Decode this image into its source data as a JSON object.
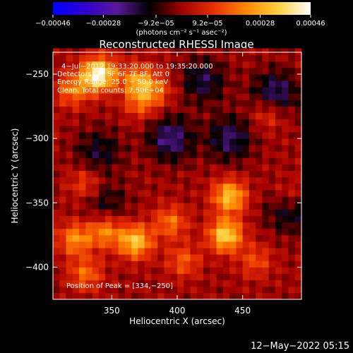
{
  "chart_data": {
    "type": "heatmap",
    "title": "Reconstructed RHESSI Image",
    "xlabel": "Heliocentric X (arcsec)",
    "ylabel": "Heliocentric Y (arcsec)",
    "xlim": [
      305,
      495
    ],
    "ylim": [
      -425,
      -233
    ],
    "x_ticks": [
      350,
      400,
      450
    ],
    "y_ticks": [
      -250,
      -300,
      -350,
      -400
    ],
    "x_tick_labels": [
      "350",
      "400",
      "450"
    ],
    "y_tick_labels": [
      "−250",
      "−300",
      "−350",
      "−400"
    ],
    "colorbar": {
      "range": [
        -0.00046,
        0.00046
      ],
      "ticks": [
        -0.00046,
        -0.00028,
        -9.2e-05,
        9.2e-05,
        0.00028,
        0.00046
      ],
      "tick_labels": [
        "−0.00046",
        "−0.00028",
        "−9.2e−05",
        "9.2e−05",
        "0.00028",
        "0.00046"
      ],
      "unit_label": "(photons cm⁻² s⁻¹ asec⁻²)",
      "colormap": [
        "#0000ff",
        "#3000d0",
        "#5a189a",
        "#000000",
        "#a00000",
        "#e83000",
        "#ff8800",
        "#ffd040",
        "#ffffff"
      ]
    },
    "annotations": [
      "4−Jul−2012 19:33:20.000 to 19:35:20.000",
      "Detectors: 3F 5F 6F 7F 8F, Att 0",
      "Energy Range: 25.0 − 50.0 keV",
      "Clean.    Total counts: 7.50E+04"
    ],
    "peak_label": "Position of Peak = [334,−250]",
    "peak_position": [
      334,
      -250
    ],
    "sources": [
      {
        "x": 340,
        "y": -250,
        "amp": 1.0
      },
      {
        "x": 370,
        "y": -255,
        "amp": 0.55
      },
      {
        "x": 320,
        "y": -262,
        "amp": 0.45
      },
      {
        "x": 372,
        "y": -272,
        "amp": 0.35
      },
      {
        "x": 385,
        "y": -262,
        "amp": 0.3
      },
      {
        "x": 440,
        "y": -345,
        "amp": 0.7
      },
      {
        "x": 437,
        "y": -375,
        "amp": 0.78
      },
      {
        "x": 368,
        "y": -380,
        "amp": 0.72
      },
      {
        "x": 345,
        "y": -372,
        "amp": 0.5
      },
      {
        "x": 322,
        "y": -378,
        "amp": 0.52
      },
      {
        "x": 395,
        "y": -365,
        "amp": 0.42
      },
      {
        "x": 405,
        "y": -395,
        "amp": 0.35
      },
      {
        "x": 330,
        "y": -405,
        "amp": 0.4
      },
      {
        "x": 470,
        "y": -280,
        "amp": 0.3
      },
      {
        "x": 460,
        "y": -395,
        "amp": 0.3
      },
      {
        "x": 330,
        "y": -335,
        "amp": 0.3
      },
      {
        "x": 485,
        "y": -345,
        "amp": 0.25
      }
    ],
    "negative_regions": [
      {
        "x": 395,
        "y": -300,
        "amp": 0.45
      },
      {
        "x": 440,
        "y": -300,
        "amp": 0.4
      },
      {
        "x": 475,
        "y": -265,
        "amp": 0.45
      },
      {
        "x": 485,
        "y": -355,
        "amp": 0.35
      },
      {
        "x": 340,
        "y": -310,
        "amp": 0.3
      },
      {
        "x": 420,
        "y": -255,
        "amp": 0.35
      },
      {
        "x": 345,
        "y": -350,
        "amp": 0.25
      }
    ]
  },
  "footer": {
    "date": "12−May−2022 05:15"
  }
}
